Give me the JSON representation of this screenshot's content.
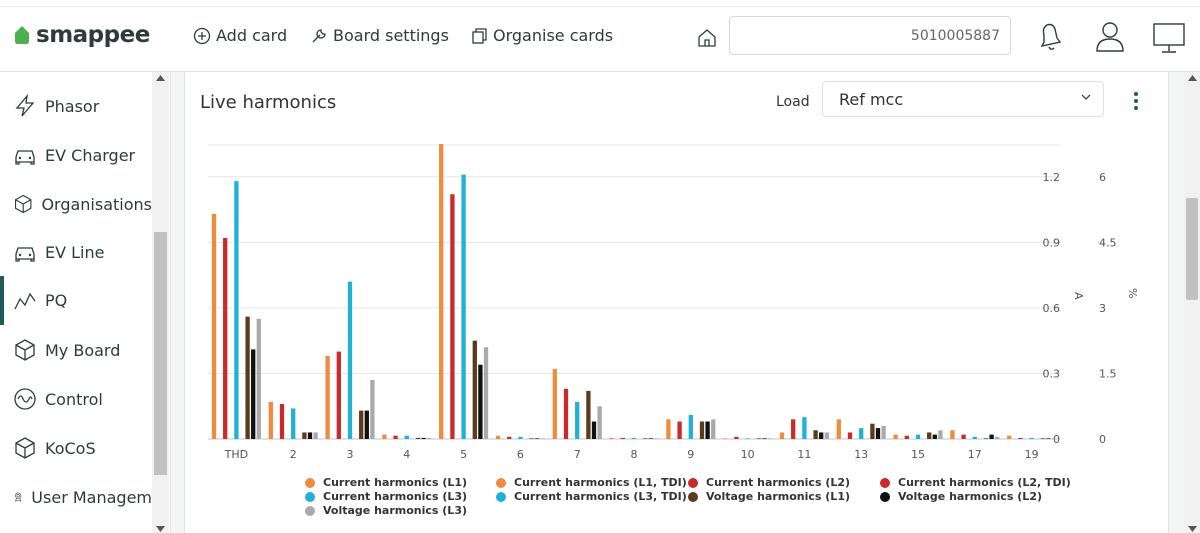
{
  "header": {
    "logo_text": "smappee",
    "add_card": "Add card",
    "board_settings": "Board settings",
    "organise_cards": "Organise cards",
    "search_value": "5010005887",
    "icons": [
      "home-icon",
      "bell-icon",
      "user-icon",
      "monitor-icon"
    ]
  },
  "sidebar": {
    "items": [
      {
        "label": "Phasor",
        "icon": "lightning-icon"
      },
      {
        "label": "EV Charger",
        "icon": "car-icon"
      },
      {
        "label": "Organisations",
        "icon": "cube-icon"
      },
      {
        "label": "EV Line",
        "icon": "car-icon"
      },
      {
        "label": "PQ",
        "icon": "wave-line-icon",
        "active": true
      },
      {
        "label": "My Board",
        "icon": "cube-icon"
      },
      {
        "label": "Control",
        "icon": "sine-icon"
      },
      {
        "label": "KoCoS",
        "icon": "cube-icon"
      },
      {
        "label": "User Managem",
        "icon": "badge-icon"
      }
    ],
    "active_color": "#1f5c58"
  },
  "card": {
    "title": "Live harmonics",
    "load_label": "Load",
    "load_value": "Ref mcc"
  },
  "chart_data": {
    "type": "bar",
    "categories": [
      "THD",
      "2",
      "3",
      "4",
      "5",
      "6",
      "7",
      "8",
      "9",
      "10",
      "11",
      "13",
      "15",
      "17",
      "19"
    ],
    "axes": {
      "left_unit": "A",
      "left_ticks": [
        "0",
        "0.3",
        "0.6",
        "0.9",
        "1.2"
      ],
      "right_unit": "%",
      "right_ticks": [
        "0",
        "1.5",
        "3",
        "4.5",
        "6"
      ]
    },
    "series": [
      {
        "name": "Current harmonics (L1)",
        "color": "#f08a3c",
        "values": [
          1.03,
          0.17,
          0.38,
          0.02,
          1.35,
          0.015,
          0.32,
          0.005,
          0.09,
          0.003,
          0.03,
          0.09,
          0.02,
          0.04,
          0.015
        ]
      },
      {
        "name": "Current harmonics (L1, TDI)",
        "color": "#f08a3c",
        "values": [
          0,
          0,
          0,
          0,
          0,
          0,
          0,
          0,
          0,
          0,
          0,
          0,
          0,
          0,
          0
        ]
      },
      {
        "name": "Current harmonics (L2)",
        "color": "#c92a2a",
        "values": [
          0.92,
          0.16,
          0.4,
          0.015,
          1.12,
          0.01,
          0.23,
          0.005,
          0.08,
          0.01,
          0.09,
          0.03,
          0.015,
          0.02,
          0.005
        ]
      },
      {
        "name": "Current harmonics (L2, TDI)",
        "color": "#c92a2a",
        "values": [
          0,
          0,
          0,
          0,
          0,
          0,
          0,
          0,
          0,
          0,
          0,
          0,
          0,
          0,
          0
        ]
      },
      {
        "name": "Current harmonics (L3)",
        "color": "#1fb2d6",
        "values": [
          1.18,
          0.14,
          0.72,
          0.015,
          1.21,
          0.01,
          0.17,
          0.005,
          0.11,
          0.003,
          0.1,
          0.05,
          0.02,
          0.01,
          0.005
        ]
      },
      {
        "name": "Current harmonics (L3, TDI)",
        "color": "#1fb2d6",
        "values": [
          0,
          0,
          0,
          0,
          0,
          0,
          0,
          0,
          0,
          0,
          0,
          0,
          0,
          0,
          0
        ]
      },
      {
        "name": "Voltage harmonics (L1)",
        "color": "#5c3a1a",
        "values": [
          0.56,
          0.03,
          0.13,
          0.005,
          0.45,
          0.003,
          0.22,
          0.003,
          0.08,
          0.003,
          0.04,
          0.07,
          0.03,
          0.003,
          0.003
        ]
      },
      {
        "name": "Voltage harmonics (L2)",
        "color": "#111111",
        "values": [
          0.41,
          0.03,
          0.13,
          0.005,
          0.34,
          0.003,
          0.08,
          0.003,
          0.08,
          0.003,
          0.03,
          0.05,
          0.02,
          0.02,
          0.003
        ]
      },
      {
        "name": "Voltage harmonics (L3)",
        "color": "#aaaaaa",
        "values": [
          0.55,
          0.03,
          0.27,
          0.005,
          0.42,
          0.003,
          0.15,
          0.003,
          0.09,
          0.003,
          0.03,
          0.06,
          0.04,
          0.01,
          0.003
        ]
      }
    ],
    "ylim": [
      0,
      1.35
    ],
    "grid": true,
    "legend_position": "bottom"
  }
}
